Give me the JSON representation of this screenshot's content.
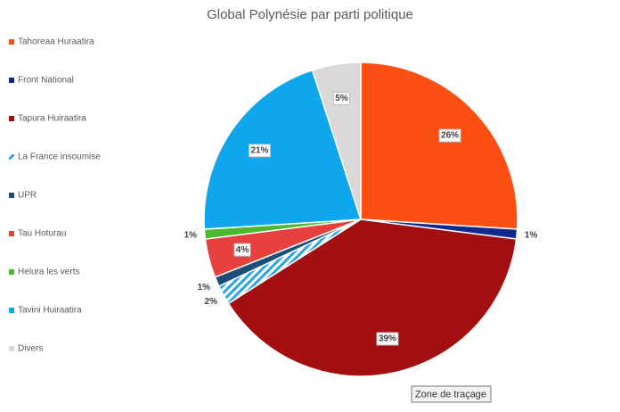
{
  "chart_data": {
    "type": "pie",
    "title": "Global Polynésie par parti politique",
    "categories": [
      "Tahoreaa Huraatira",
      "Front National",
      "Tapura Huiraatira",
      "La France insoumise",
      "UPR",
      "Tau Hoturau",
      "Heiura les verts",
      "Tavini Huiraatira",
      "Divers"
    ],
    "values": [
      26,
      1,
      39,
      2,
      1,
      4,
      1,
      21,
      5
    ],
    "value_labels": [
      "26%",
      "1%",
      "39%",
      "2%",
      "1%",
      "4%",
      "1%",
      "21%",
      "5%"
    ],
    "colors": [
      "#fc4f14",
      "#0f2a8c",
      "#a30f10",
      {
        "color": "#2aa4e2",
        "pattern": "diagonal"
      },
      "#1d4e78",
      "#e6413d",
      "#4cb82f",
      "#10a6ee",
      "#d9d9d9"
    ],
    "legend": "left"
  },
  "tooltip": "Zone de traçage"
}
